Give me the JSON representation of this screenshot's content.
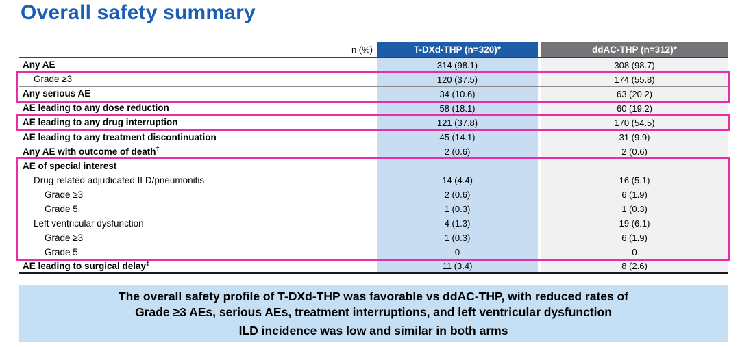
{
  "title": "Overall safety summary",
  "colors": {
    "title_blue": "#1b5eb4",
    "header_blue": "#1f5ca8",
    "header_gray": "#757478",
    "col_blue": "#c8dcf2",
    "col_gray": "#f1f1f1",
    "highlight_pink": "#ea2ca6",
    "footer_bg": "#c5dff4"
  },
  "table": {
    "unit_label": "n (%)",
    "col1_header": "T-DXd-THP (n=320)*",
    "col2_header": "ddAC-THP (n=312)*",
    "rows": [
      {
        "label": "Any AE",
        "t_dxd": "314 (98.1)",
        "ddac": "308 (98.7)",
        "bold": true,
        "indent": 0,
        "sep": "gray"
      },
      {
        "label": "Grade ≥3",
        "t_dxd": "120 (37.5)",
        "ddac": "174 (55.8)",
        "bold": false,
        "indent": 1,
        "sep": "gray"
      },
      {
        "label": "Any serious AE",
        "t_dxd": "34 (10.6)",
        "ddac": "63 (20.2)",
        "bold": true,
        "indent": 0,
        "sep": "gray"
      },
      {
        "label": "AE leading to any dose reduction",
        "t_dxd": "58 (18.1)",
        "ddac": "60 (19.2)",
        "bold": true,
        "indent": 0,
        "sep": "gray"
      },
      {
        "label": "AE leading to any drug interruption",
        "t_dxd": "121 (37.8)",
        "ddac": "170 (54.5)",
        "bold": true,
        "indent": 0,
        "sep": "gray"
      },
      {
        "label": "AE leading to any treatment discontinuation",
        "t_dxd": "45 (14.1)",
        "ddac": "31 (9.9)",
        "bold": true,
        "indent": 0,
        "sep": "none"
      },
      {
        "label": "Any AE with outcome of death",
        "sup": "†",
        "t_dxd": "2 (0.6)",
        "ddac": "2 (0.6)",
        "bold": true,
        "indent": 0,
        "sep": "none"
      },
      {
        "label": "AE of special interest",
        "t_dxd": "",
        "ddac": "",
        "bold": true,
        "indent": 0,
        "sep": "none"
      },
      {
        "label": "Drug-related adjudicated ILD/pneumonitis",
        "t_dxd": "14 (4.4)",
        "ddac": "16 (5.1)",
        "bold": false,
        "indent": 1,
        "sep": "none"
      },
      {
        "label": "Grade ≥3",
        "t_dxd": "2 (0.6)",
        "ddac": "6 (1.9)",
        "bold": false,
        "indent": 2,
        "sep": "none"
      },
      {
        "label": "Grade 5",
        "t_dxd": "1 (0.3)",
        "ddac": "1 (0.3)",
        "bold": false,
        "indent": 2,
        "sep": "none"
      },
      {
        "label": "Left ventricular dysfunction",
        "t_dxd": "4 (1.3)",
        "ddac": "19 (6.1)",
        "bold": false,
        "indent": 1,
        "sep": "none"
      },
      {
        "label": "Grade ≥3",
        "t_dxd": "1 (0.3)",
        "ddac": "6 (1.9)",
        "bold": false,
        "indent": 2,
        "sep": "none"
      },
      {
        "label": "Grade 5",
        "t_dxd": "0",
        "ddac": "0",
        "bold": false,
        "indent": 2,
        "sep": "none"
      },
      {
        "label": "AE leading to surgical delay",
        "sup": "‡",
        "t_dxd": "11 (3.4)",
        "ddac": "8 (2.6)",
        "bold": true,
        "indent": 0,
        "sep": "black"
      }
    ],
    "highlights": [
      {
        "first_row": 1,
        "last_row": 2
      },
      {
        "first_row": 4,
        "last_row": 4
      },
      {
        "first_row": 7,
        "last_row": 13
      }
    ]
  },
  "footer": {
    "lines": [
      "The overall safety profile of T-DXd-THP was favorable vs ddAC-THP, with reduced rates of",
      "Grade ≥3 AEs, serious AEs, treatment interruptions, and left ventricular dysfunction",
      "ILD incidence was low and similar in both arms"
    ]
  }
}
